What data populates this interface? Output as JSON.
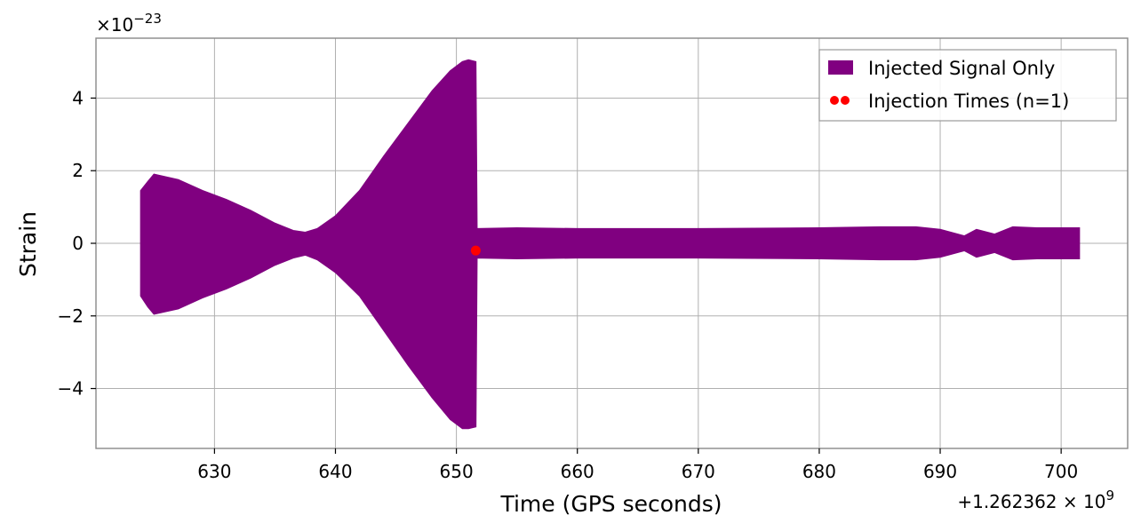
{
  "chart_data": {
    "type": "area",
    "title": "",
    "xlabel": "Time (GPS seconds)",
    "ylabel": "Strain",
    "x_offset_label": "+1.262362 × 10",
    "x_offset_exponent": "9",
    "y_scale_label": "×10",
    "y_scale_exponent": "−23",
    "xlim": [
      620.2,
      705.5
    ],
    "ylim": [
      -5.65,
      5.65
    ],
    "xticks": [
      630,
      640,
      650,
      660,
      670,
      680,
      690,
      700
    ],
    "xtick_labels": [
      "630",
      "640",
      "650",
      "660",
      "670",
      "680",
      "690",
      "700"
    ],
    "yticks": [
      -4,
      -2,
      0,
      2,
      4
    ],
    "ytick_labels": [
      "−4",
      "−2",
      "0",
      "2",
      "4"
    ],
    "grid": true,
    "legend_position": "top-right",
    "series": [
      {
        "name": "Injected Signal Only",
        "color": "#800080",
        "envelope_x": [
          623.9,
          624.5,
          625.0,
          627.0,
          629.0,
          631.0,
          633.0,
          635.0,
          636.5,
          637.5,
          638.5,
          640.0,
          642.0,
          644.0,
          646.0,
          648.0,
          649.5,
          650.5,
          651.0,
          651.6,
          651.7,
          655.0,
          660.0,
          670.0,
          680.0,
          685.0,
          688.0,
          690.0,
          692.0,
          693.0,
          694.5,
          696.0,
          698.0,
          701.5
        ],
        "envelope_upper": [
          1.45,
          1.7,
          1.9,
          1.75,
          1.45,
          1.2,
          0.9,
          0.55,
          0.35,
          0.3,
          0.4,
          0.75,
          1.45,
          2.4,
          3.3,
          4.2,
          4.75,
          5.0,
          5.05,
          5.0,
          0.4,
          0.42,
          0.4,
          0.4,
          0.42,
          0.45,
          0.45,
          0.38,
          0.2,
          0.38,
          0.25,
          0.45,
          0.42,
          0.42
        ],
        "envelope_lower": [
          -1.45,
          -1.75,
          -1.95,
          -1.8,
          -1.5,
          -1.25,
          -0.95,
          -0.6,
          -0.4,
          -0.32,
          -0.45,
          -0.8,
          -1.45,
          -2.4,
          -3.35,
          -4.25,
          -4.85,
          -5.1,
          -5.1,
          -5.05,
          -0.4,
          -0.42,
          -0.4,
          -0.4,
          -0.42,
          -0.45,
          -0.45,
          -0.38,
          -0.2,
          -0.38,
          -0.25,
          -0.45,
          -0.42,
          -0.42
        ]
      },
      {
        "name": "Injection Times (n=1)",
        "color": "#ff0000",
        "points": [
          {
            "x": 651.6,
            "y": -0.2
          }
        ]
      }
    ]
  }
}
